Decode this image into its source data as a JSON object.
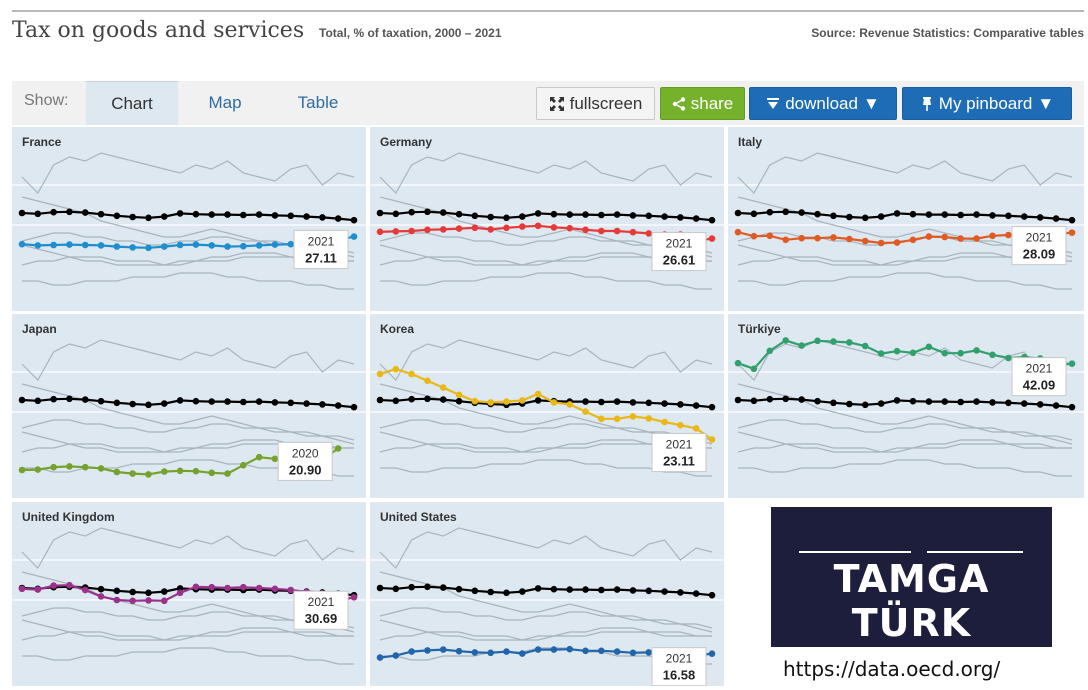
{
  "header": {
    "title": "Tax on goods and services",
    "subtitle": "Total, % of taxation, 2000 – 2021",
    "source": "Source: Revenue Statistics: Comparative tables"
  },
  "toolbar": {
    "show_label": "Show:",
    "tabs": [
      "Chart",
      "Map",
      "Table"
    ],
    "active_tab": "Chart",
    "fullscreen_label": "fullscreen",
    "share_label": "share",
    "download_label": "download",
    "pinboard_label": "My pinboard"
  },
  "colors": {
    "panel_bg": "#dde8f0",
    "oecd_line": "#000000",
    "others_line": "#a9b4bd",
    "share_btn": "#75b12a",
    "download_btn": "#1f6cb6"
  },
  "chart_data": {
    "type": "line",
    "x": [
      2000,
      2001,
      2002,
      2003,
      2004,
      2005,
      2006,
      2007,
      2008,
      2009,
      2010,
      2011,
      2012,
      2013,
      2014,
      2015,
      2016,
      2017,
      2018,
      2019,
      2020,
      2021
    ],
    "ylim": [
      10,
      50
    ],
    "benchmark": {
      "values": [
        33.0,
        32.8,
        33.2,
        33.3,
        33.1,
        32.7,
        32.3,
        32.0,
        31.8,
        32.1,
        32.9,
        32.7,
        32.6,
        32.6,
        32.5,
        32.6,
        32.4,
        32.3,
        32.1,
        31.9,
        31.6,
        31.2
      ]
    },
    "background_series": [
      [
        42,
        38,
        45,
        47,
        46,
        48,
        47,
        46,
        45,
        44,
        43,
        45,
        44,
        46,
        43,
        42,
        41,
        44,
        45,
        40,
        43,
        42
      ],
      [
        37,
        36,
        35,
        34,
        33,
        31,
        30,
        29,
        28,
        27,
        27,
        28,
        29,
        28,
        27,
        26,
        26,
        25,
        25,
        24,
        23,
        22
      ],
      [
        26,
        27,
        28,
        28,
        27,
        27,
        26,
        26,
        25,
        25,
        26,
        26,
        27,
        27,
        26,
        26,
        25,
        25,
        24,
        24,
        24,
        23
      ],
      [
        20,
        21,
        21,
        22,
        22,
        22,
        21,
        21,
        21,
        20,
        20,
        21,
        21,
        21,
        22,
        22,
        22,
        22,
        21,
        21,
        21,
        21
      ],
      [
        25,
        24,
        23,
        22,
        21,
        21,
        20,
        20,
        20,
        20,
        21,
        21,
        22,
        22,
        23,
        23,
        23,
        22,
        22,
        22,
        21,
        21
      ],
      [
        16,
        16,
        15,
        15,
        16,
        16,
        16,
        17,
        17,
        17,
        18,
        18,
        18,
        17,
        17,
        16,
        16,
        16,
        15,
        15,
        14,
        14
      ]
    ],
    "panels": [
      {
        "country": "France",
        "color": "#1f8ecf",
        "label_year": "2021",
        "label_value": "27.11",
        "values": [
          25.2,
          24.9,
          25.0,
          25.1,
          25.0,
          24.9,
          24.6,
          24.4,
          24.3,
          24.6,
          25.0,
          25.1,
          24.9,
          24.6,
          24.7,
          24.9,
          25.1,
          25.2,
          25.3,
          25.6,
          26.2,
          27.11
        ]
      },
      {
        "country": "Germany",
        "color": "#e63a3a",
        "label_year": "2021",
        "label_value": "26.61",
        "values": [
          28.3,
          28.4,
          28.5,
          28.8,
          28.9,
          29.1,
          29.3,
          28.9,
          29.3,
          29.6,
          29.8,
          29.4,
          29.2,
          28.8,
          28.5,
          28.5,
          28.2,
          27.9,
          27.6,
          27.6,
          26.0,
          26.61
        ]
      },
      {
        "country": "Italy",
        "color": "#e05a24",
        "label_year": "2021",
        "label_value": "28.09",
        "values": [
          28.2,
          27.2,
          27.3,
          26.3,
          26.7,
          26.7,
          26.9,
          26.5,
          26.0,
          25.5,
          25.6,
          26.3,
          27.1,
          27.0,
          26.6,
          26.6,
          27.3,
          27.5,
          28.0,
          28.3,
          27.7,
          28.09
        ]
      },
      {
        "country": "Japan",
        "color": "#76a12d",
        "label_year": "2020",
        "label_value": "20.90",
        "values": [
          15.5,
          15.6,
          16.2,
          16.4,
          16.2,
          15.9,
          15.0,
          14.6,
          14.4,
          15.1,
          15.3,
          15.2,
          14.8,
          14.6,
          16.7,
          18.7,
          18.3,
          18.1,
          17.8,
          18.1,
          20.9
        ]
      },
      {
        "country": "Korea",
        "color": "#e8b818",
        "label_year": "2021",
        "label_value": "23.11",
        "values": [
          39.5,
          40.7,
          39.5,
          37.8,
          36.1,
          34.3,
          32.7,
          32.4,
          32.6,
          32.9,
          34.5,
          32.4,
          31.9,
          30.1,
          28.3,
          28.3,
          28.9,
          28.4,
          27.5,
          26.7,
          25.9,
          23.11
        ]
      },
      {
        "country": "Türkiye",
        "color": "#32a06e",
        "label_year": "2021",
        "label_value": "42.09",
        "values": [
          42.2,
          40.8,
          45.3,
          47.9,
          46.6,
          47.8,
          47.6,
          47.4,
          46.5,
          44.6,
          45.2,
          44.8,
          46.3,
          44.7,
          44.7,
          45.4,
          44.3,
          43.5,
          43.7,
          43.4,
          41.6,
          42.09
        ]
      },
      {
        "country": "United Kingdom",
        "color": "#9a328c",
        "label_year": "2021",
        "label_value": "30.69",
        "values": [
          32.8,
          32.6,
          33.6,
          33.7,
          32.5,
          30.9,
          30.0,
          29.8,
          29.9,
          29.8,
          31.8,
          33.3,
          33.2,
          33.0,
          33.2,
          33.0,
          32.8,
          32.5,
          32.0,
          31.6,
          29.8,
          30.69
        ]
      },
      {
        "country": "United States",
        "color": "#2166aa",
        "label_year": "2021",
        "label_value": "16.58",
        "values": [
          15.6,
          16.1,
          17.1,
          17.4,
          17.6,
          17.2,
          16.9,
          16.8,
          17.1,
          16.6,
          17.6,
          17.6,
          17.7,
          17.3,
          17.3,
          17.1,
          16.8,
          16.9,
          17.0,
          16.6,
          16.1,
          16.58
        ]
      }
    ]
  },
  "logo": {
    "text": "TAMGA TÜRK"
  },
  "footer": {
    "url": "https://data.oecd.org/"
  }
}
